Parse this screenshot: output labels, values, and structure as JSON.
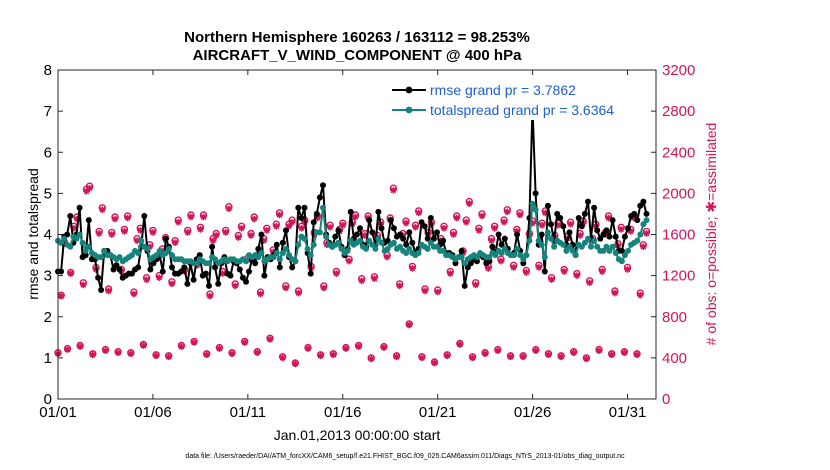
{
  "colors": {
    "rmse": "#000000",
    "spread": "#16837d",
    "obs": "#d4145a",
    "legend_text": "#1f5fd0"
  },
  "chart_data": {
    "type": "line",
    "title_line1": "Northern Hemisphere 160263 / 163112 = 98.253%",
    "title_line2": "AIRCRAFT_V_WIND_COMPONENT @ 400 hPa",
    "xlabel": "Jan.01,2013 00:00:00 start",
    "ylabel_left": "rmse and totalspread",
    "ylabel_right": "# of obs: o=possible; ✱=assimilated",
    "xlim": [
      0,
      31.5
    ],
    "ylim_left": [
      0,
      8
    ],
    "ylim_right": [
      0,
      3200
    ],
    "x_ticks": [
      0,
      5,
      10,
      15,
      20,
      25,
      30
    ],
    "x_tick_labels": [
      "01/01",
      "01/06",
      "01/11",
      "01/16",
      "01/21",
      "01/26",
      "01/31"
    ],
    "y_left_ticks": [
      "0",
      "1",
      "2",
      "3",
      "4",
      "5",
      "6",
      "7",
      "8"
    ],
    "y_right_ticks": [
      "0",
      "400",
      "800",
      "1200",
      "1600",
      "2000",
      "2400",
      "2800",
      "3200"
    ],
    "legend": [
      "rmse grand pr = 3.7862",
      "totalspread grand pr = 3.6364"
    ],
    "footnote": "data file: /Users/raeder/DAI/ATM_forcXX/CAM6_setup/f.e21.FHIST_BGC.f09_025.CAM6assim.011/Diags_NTrS_2013-01/obs_diag_output.nc",
    "series": [
      {
        "name": "rmse",
        "values": [
          3.1,
          3.1,
          3.95,
          4.0,
          4.45,
          3.8,
          4.0,
          4.65,
          3.45,
          3.5,
          4.35,
          3.4,
          3.4,
          2.95,
          2.65,
          3.6,
          3.6,
          3.5,
          3.15,
          3.25,
          3.15,
          2.95,
          3.0,
          3.05,
          3.05,
          3.15,
          3.2,
          3.7,
          4.45,
          3.6,
          3.15,
          3.3,
          3.4,
          3.5,
          3.1,
          3.9,
          3.7,
          3.2,
          3.05,
          3.05,
          3.1,
          3.2,
          2.8,
          3.3,
          2.9,
          3.4,
          3.5,
          3.0,
          3.05,
          2.75,
          3.7,
          3.2,
          2.8,
          3.3,
          3.45,
          3.05,
          3.0,
          3.35,
          3.3,
          3.15,
          2.95,
          2.85,
          3.1,
          3.4,
          3.3,
          3.65,
          4.0,
          3.0,
          3.45,
          3.4,
          3.5,
          3.75,
          3.2,
          3.8,
          4.1,
          3.45,
          3.2,
          3.35,
          4.65,
          4.4,
          4.65,
          3.55,
          3.05,
          4.3,
          4.5,
          4.9,
          5.2,
          4.0,
          3.8,
          3.7,
          3.95,
          4.1,
          3.7,
          3.5,
          3.65,
          4.55,
          3.9,
          4.0,
          4.15,
          3.75,
          3.7,
          4.35,
          4.05,
          3.75,
          4.55,
          4.15,
          3.8,
          3.85,
          4.35,
          4.15,
          3.95,
          4.0,
          3.9,
          3.75,
          4.05,
          3.8,
          3.55,
          3.65,
          4.3,
          4.2,
          3.9,
          4.4,
          3.9,
          4.05,
          3.75,
          3.85,
          3.55,
          3.55,
          3.5,
          3.3,
          3.45,
          3.6,
          2.75,
          3.2,
          3.3,
          3.4,
          3.35,
          3.5,
          3.45,
          3.3,
          3.35,
          3.7,
          3.55,
          4.0,
          3.75,
          3.9,
          3.65,
          3.5,
          3.55,
          4.0,
          3.6,
          3.3,
          3.5,
          4.4,
          7.1,
          5.0,
          3.75,
          4.0,
          3.1,
          4.7,
          4.25,
          3.85,
          4.5,
          4.4,
          4.2,
          3.75,
          4.05,
          3.75,
          3.5,
          4.4,
          4.2,
          4.5,
          4.8,
          3.9,
          4.65,
          4.1,
          3.9,
          4.0,
          4.1,
          3.95,
          4.35,
          3.95,
          3.6,
          3.6,
          3.95,
          4.15,
          4.45,
          4.5,
          4.35,
          4.7,
          4.8,
          4.5
        ]
      },
      {
        "name": "totalspread",
        "values": [
          3.85,
          3.8,
          3.9,
          3.75,
          3.7,
          3.95,
          3.9,
          4.0,
          3.8,
          3.6,
          3.7,
          3.55,
          3.5,
          3.45,
          3.45,
          3.6,
          3.5,
          3.5,
          3.45,
          3.4,
          3.45,
          3.35,
          3.4,
          3.45,
          3.5,
          3.6,
          3.55,
          3.85,
          3.7,
          3.65,
          3.4,
          3.45,
          3.5,
          3.6,
          3.5,
          3.55,
          3.65,
          3.5,
          3.4,
          3.4,
          3.4,
          3.35,
          3.35,
          3.35,
          3.3,
          3.3,
          3.4,
          3.35,
          3.3,
          3.3,
          3.45,
          3.4,
          3.3,
          3.35,
          3.4,
          3.35,
          3.4,
          3.4,
          3.35,
          3.35,
          3.4,
          3.35,
          3.5,
          3.45,
          3.5,
          3.45,
          3.55,
          3.35,
          3.4,
          3.45,
          3.45,
          3.55,
          3.4,
          3.55,
          3.65,
          3.5,
          3.4,
          3.35,
          3.75,
          3.95,
          3.9,
          3.65,
          3.5,
          3.75,
          4.05,
          4.05,
          4.65,
          3.95,
          3.75,
          3.7,
          3.75,
          3.8,
          3.65,
          3.55,
          3.6,
          3.85,
          3.75,
          3.8,
          3.85,
          3.7,
          3.65,
          3.85,
          3.75,
          3.65,
          3.9,
          3.8,
          3.6,
          3.65,
          3.75,
          3.8,
          3.65,
          3.7,
          3.6,
          3.55,
          3.65,
          3.55,
          3.5,
          3.55,
          3.75,
          3.7,
          3.65,
          3.8,
          3.7,
          3.7,
          3.6,
          3.6,
          3.5,
          3.5,
          3.45,
          3.4,
          3.45,
          3.45,
          3.3,
          3.4,
          3.45,
          3.5,
          3.45,
          3.55,
          3.5,
          3.45,
          3.45,
          3.55,
          3.5,
          3.6,
          3.55,
          3.65,
          3.55,
          3.5,
          3.5,
          3.65,
          3.5,
          3.4,
          3.5,
          3.85,
          4.75,
          4.6,
          3.85,
          3.75,
          3.45,
          4.05,
          3.9,
          3.7,
          3.85,
          3.8,
          3.75,
          3.6,
          3.7,
          3.6,
          3.5,
          3.75,
          3.7,
          3.8,
          3.9,
          3.7,
          3.85,
          3.7,
          3.6,
          3.6,
          3.7,
          3.6,
          3.7,
          3.55,
          3.4,
          3.35,
          3.5,
          3.6,
          3.75,
          3.8,
          3.85,
          4.0,
          4.25,
          4.35
        ]
      },
      {
        "name": "obs_possible",
        "values": [
          450,
          1010,
          1530,
          490,
          1230,
          1680,
          1770,
          520,
          1130,
          2040,
          2070,
          440,
          1280,
          1630,
          1860,
          480,
          1070,
          1620,
          1770,
          460,
          1260,
          1650,
          1780,
          450,
          1040,
          1560,
          1660,
          530,
          1180,
          1500,
          1640,
          430,
          1200,
          1460,
          1570,
          420,
          1140,
          1540,
          1740,
          520,
          1260,
          1640,
          1790,
          560,
          1320,
          1670,
          1790,
          440,
          1020,
          1560,
          1610,
          500,
          1240,
          1640,
          1870,
          450,
          1120,
          1590,
          1680,
          560,
          1370,
          1610,
          1770,
          460,
          1040,
          1560,
          1660,
          590,
          1450,
          1700,
          1810,
          410,
          1100,
          1700,
          1740,
          350,
          1050,
          1680,
          1740,
          500,
          1290,
          1620,
          1780,
          430,
          1100,
          1520,
          1690,
          440,
          1240,
          1650,
          1710,
          500,
          1360,
          1720,
          1790,
          520,
          1170,
          1610,
          1780,
          400,
          1190,
          1590,
          1720,
          510,
          1400,
          1760,
          2050,
          420,
          1120,
          1610,
          1730,
          730,
          1290,
          1690,
          1830,
          410,
          1070,
          1620,
          1720,
          360,
          1060,
          1560,
          1680,
          430,
          1240,
          1620,
          1780,
          540,
          1440,
          1740,
          1920,
          410,
          1130,
          1660,
          1800,
          450,
          1290,
          1560,
          1680,
          480,
          1360,
          1740,
          1840,
          420,
          1300,
          1650,
          1810,
          420,
          1250,
          1610,
          1730,
          480,
          1300,
          1710,
          1830,
          440,
          1180,
          1590,
          1710,
          420,
          1260,
          1580,
          1720,
          460,
          1220,
          1610,
          1730,
          400,
          1150,
          1560,
          1700,
          480,
          1260,
          1620,
          1780,
          440,
          1050,
          1510,
          1670,
          460,
          1280,
          1650,
          1780,
          440,
          1030,
          1500,
          1630
        ]
      },
      {
        "name": "obs_assimilated",
        "values": [
          440,
          1000,
          1510,
          480,
          1220,
          1660,
          1750,
          510,
          1110,
          2020,
          2050,
          430,
          1260,
          1610,
          1840,
          470,
          1050,
          1600,
          1750,
          450,
          1240,
          1630,
          1760,
          440,
          1020,
          1540,
          1640,
          520,
          1160,
          1480,
          1620,
          420,
          1180,
          1440,
          1550,
          410,
          1120,
          1520,
          1720,
          510,
          1240,
          1620,
          1770,
          550,
          1300,
          1650,
          1770,
          430,
          1000,
          1540,
          1590,
          490,
          1220,
          1620,
          1850,
          440,
          1100,
          1570,
          1660,
          550,
          1350,
          1590,
          1750,
          450,
          1020,
          1540,
          1640,
          580,
          1430,
          1680,
          1790,
          400,
          1080,
          1680,
          1720,
          340,
          1030,
          1660,
          1720,
          490,
          1270,
          1600,
          1760,
          420,
          1080,
          1500,
          1670,
          430,
          1220,
          1630,
          1690,
          490,
          1340,
          1700,
          1770,
          510,
          1150,
          1590,
          1760,
          390,
          1170,
          1570,
          1700,
          500,
          1380,
          1740,
          2030,
          410,
          1100,
          1590,
          1710,
          720,
          1270,
          1670,
          1810,
          400,
          1050,
          1600,
          1700,
          350,
          1040,
          1540,
          1660,
          420,
          1220,
          1600,
          1760,
          530,
          1420,
          1720,
          1900,
          400,
          1110,
          1640,
          1780,
          440,
          1270,
          1540,
          1660,
          470,
          1340,
          1720,
          1820,
          410,
          1280,
          1630,
          1790,
          410,
          1230,
          1590,
          1710,
          470,
          1280,
          1690,
          1810,
          430,
          1160,
          1570,
          1690,
          410,
          1240,
          1560,
          1700,
          450,
          1200,
          1590,
          1710,
          390,
          1130,
          1540,
          1680,
          470,
          1240,
          1600,
          1760,
          430,
          1030,
          1490,
          1650,
          450,
          1260,
          1630,
          1760,
          430,
          1010,
          1480,
          1610
        ]
      }
    ]
  }
}
